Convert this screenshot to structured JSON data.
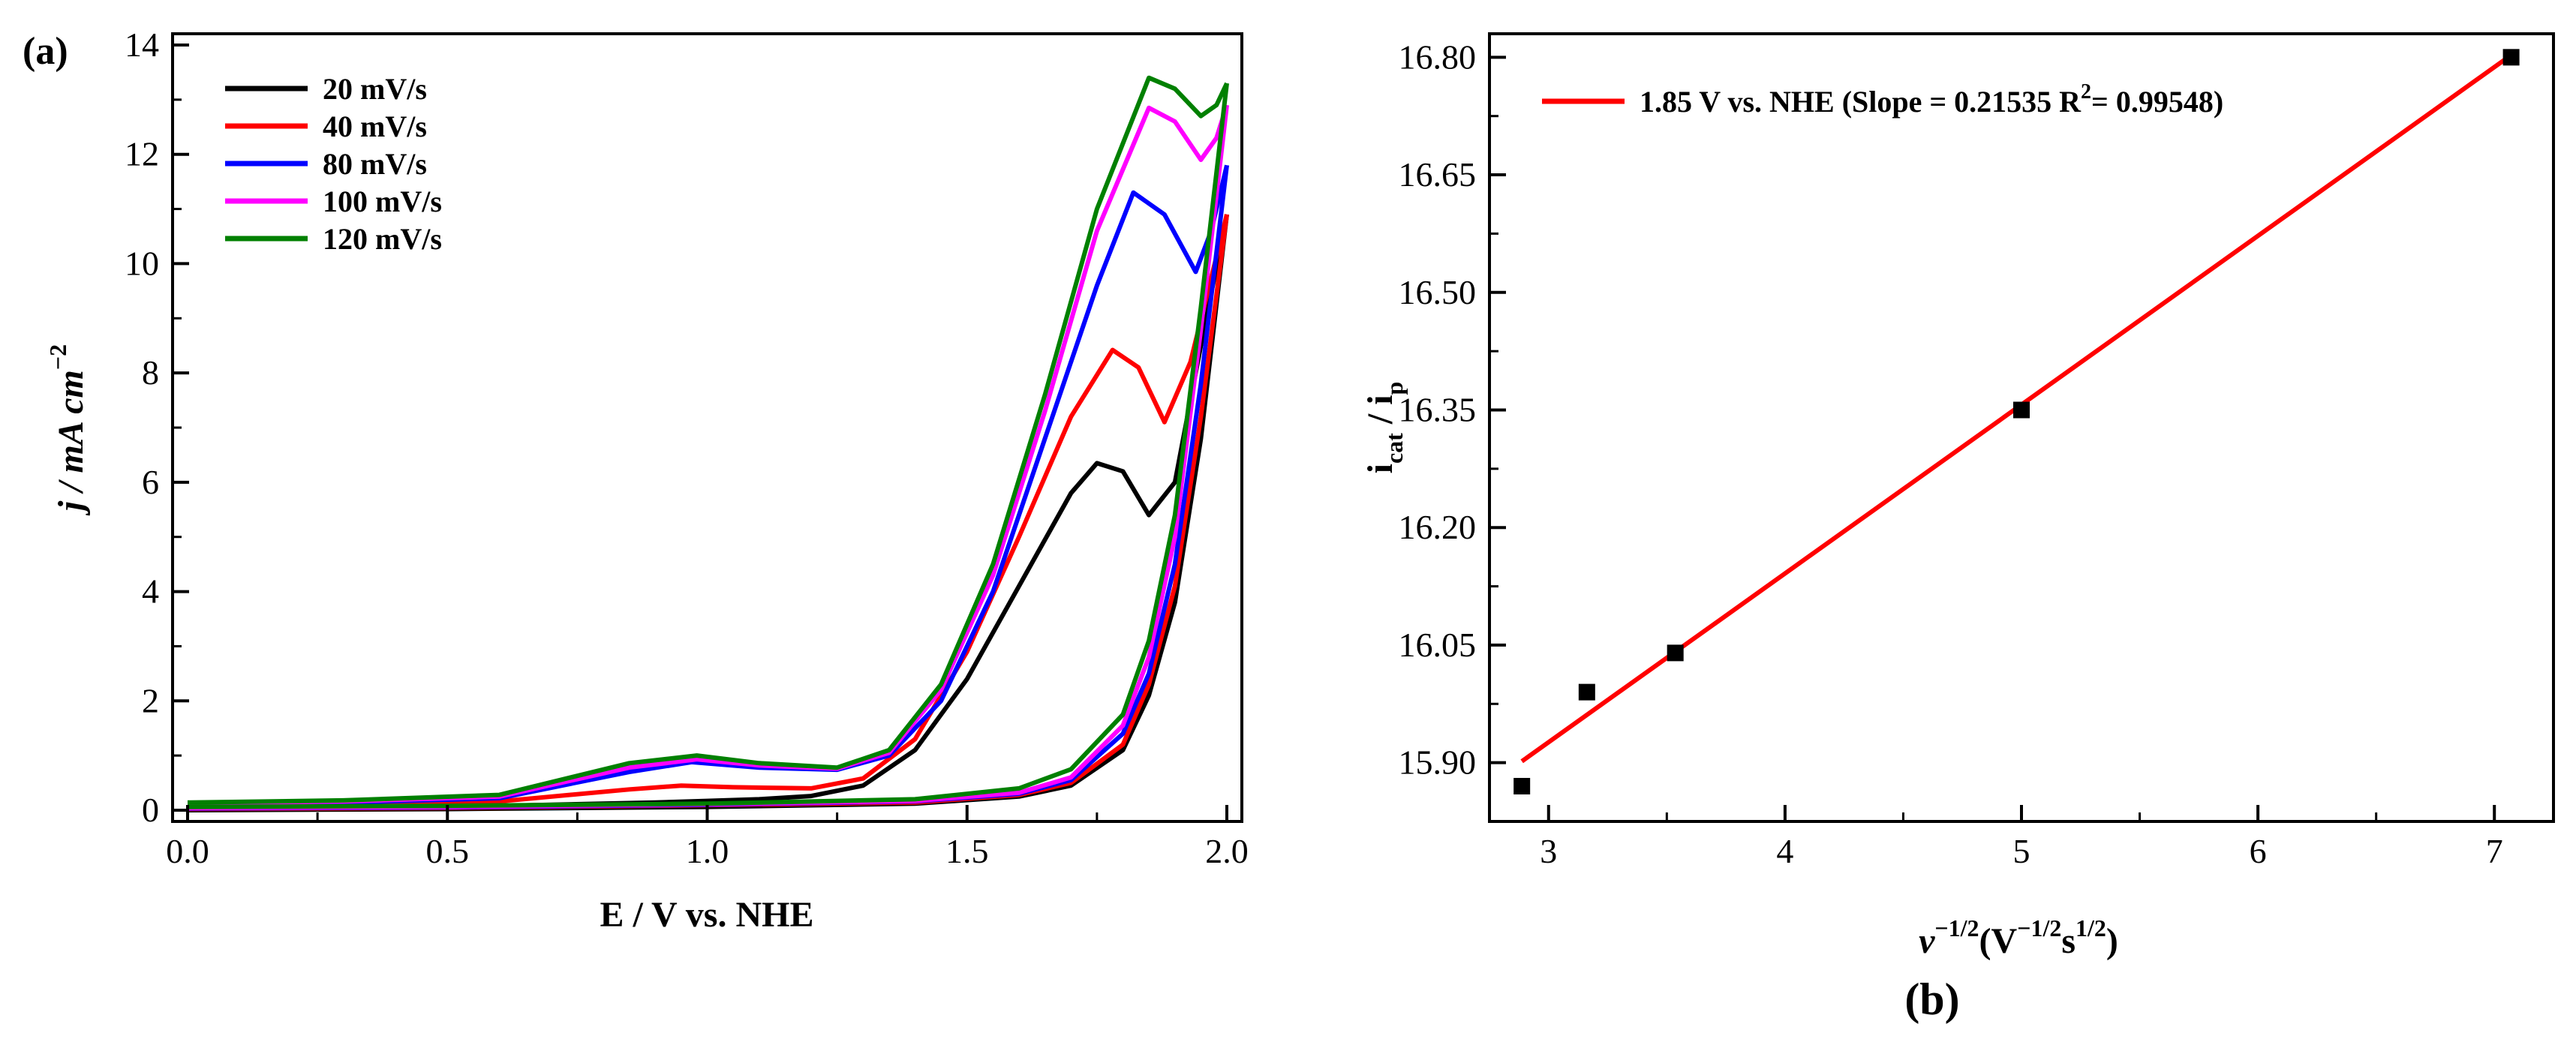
{
  "chart_data": [
    {
      "type": "line",
      "panel_label": "(a)",
      "xlabel": "E / V vs. NHE",
      "ylabel": "j / mA cm",
      "ylabel_sup": "−2",
      "xlim": [
        0.0,
        2.0
      ],
      "ylim": [
        0,
        14
      ],
      "xticks": [
        "0.0",
        "0.5",
        "1.0",
        "1.5",
        "2.0"
      ],
      "yticks": [
        "0",
        "2",
        "4",
        "6",
        "8",
        "10",
        "12",
        "14"
      ],
      "legend_position": "top-left",
      "series": [
        {
          "name": "20 mV/s",
          "color": "#000000",
          "forward": [
            [
              0.0,
              0.03
            ],
            [
              0.3,
              0.05
            ],
            [
              0.6,
              0.08
            ],
            [
              0.9,
              0.14
            ],
            [
              1.0,
              0.17
            ],
            [
              1.1,
              0.2
            ],
            [
              1.2,
              0.26
            ],
            [
              1.3,
              0.45
            ],
            [
              1.4,
              1.1
            ],
            [
              1.5,
              2.4
            ],
            [
              1.6,
              4.1
            ],
            [
              1.7,
              5.8
            ],
            [
              1.75,
              6.35
            ],
            [
              1.8,
              6.2
            ],
            [
              1.85,
              5.4
            ],
            [
              1.9,
              6.0
            ],
            [
              1.95,
              8.5
            ],
            [
              2.0,
              10.9
            ]
          ],
          "reverse": [
            [
              2.0,
              10.9
            ],
            [
              1.95,
              6.8
            ],
            [
              1.9,
              3.8
            ],
            [
              1.85,
              2.1
            ],
            [
              1.8,
              1.1
            ],
            [
              1.7,
              0.45
            ],
            [
              1.6,
              0.25
            ],
            [
              1.4,
              0.12
            ],
            [
              1.0,
              0.06
            ],
            [
              0.5,
              0.02
            ],
            [
              0.0,
              0.0
            ]
          ]
        },
        {
          "name": "40 mV/s",
          "color": "#ff0000",
          "forward": [
            [
              0.0,
              0.06
            ],
            [
              0.3,
              0.1
            ],
            [
              0.6,
              0.16
            ],
            [
              0.85,
              0.38
            ],
            [
              0.95,
              0.45
            ],
            [
              1.05,
              0.42
            ],
            [
              1.2,
              0.4
            ],
            [
              1.3,
              0.58
            ],
            [
              1.4,
              1.3
            ],
            [
              1.5,
              2.9
            ],
            [
              1.6,
              5.0
            ],
            [
              1.7,
              7.2
            ],
            [
              1.78,
              8.42
            ],
            [
              1.83,
              8.1
            ],
            [
              1.88,
              7.1
            ],
            [
              1.93,
              8.2
            ],
            [
              2.0,
              10.9
            ]
          ],
          "reverse": [
            [
              2.0,
              10.9
            ],
            [
              1.95,
              7.2
            ],
            [
              1.9,
              4.1
            ],
            [
              1.85,
              2.3
            ],
            [
              1.8,
              1.2
            ],
            [
              1.7,
              0.5
            ],
            [
              1.6,
              0.28
            ],
            [
              1.4,
              0.14
            ],
            [
              1.0,
              0.09
            ],
            [
              0.5,
              0.04
            ],
            [
              0.0,
              0.02
            ]
          ]
        },
        {
          "name": "80 mV/s",
          "color": "#0000ff",
          "forward": [
            [
              0.0,
              0.1
            ],
            [
              0.3,
              0.14
            ],
            [
              0.6,
              0.22
            ],
            [
              0.85,
              0.7
            ],
            [
              0.97,
              0.88
            ],
            [
              1.1,
              0.78
            ],
            [
              1.25,
              0.74
            ],
            [
              1.35,
              1.0
            ],
            [
              1.45,
              2.0
            ],
            [
              1.55,
              4.0
            ],
            [
              1.65,
              6.8
            ],
            [
              1.75,
              9.6
            ],
            [
              1.82,
              11.3
            ],
            [
              1.88,
              10.9
            ],
            [
              1.94,
              9.85
            ],
            [
              1.97,
              10.6
            ],
            [
              2.0,
              11.8
            ]
          ],
          "reverse": [
            [
              2.0,
              11.8
            ],
            [
              1.95,
              7.8
            ],
            [
              1.9,
              4.5
            ],
            [
              1.85,
              2.5
            ],
            [
              1.8,
              1.4
            ],
            [
              1.7,
              0.55
            ],
            [
              1.6,
              0.3
            ],
            [
              1.4,
              0.16
            ],
            [
              1.0,
              0.1
            ],
            [
              0.5,
              0.05
            ],
            [
              0.0,
              0.03
            ]
          ]
        },
        {
          "name": "100 mV/s",
          "color": "#ff00ff",
          "forward": [
            [
              0.0,
              0.12
            ],
            [
              0.3,
              0.16
            ],
            [
              0.6,
              0.25
            ],
            [
              0.85,
              0.78
            ],
            [
              0.98,
              0.93
            ],
            [
              1.1,
              0.82
            ],
            [
              1.25,
              0.76
            ],
            [
              1.35,
              1.05
            ],
            [
              1.45,
              2.2
            ],
            [
              1.55,
              4.3
            ],
            [
              1.65,
              7.3
            ],
            [
              1.75,
              10.6
            ],
            [
              1.85,
              12.85
            ],
            [
              1.9,
              12.6
            ],
            [
              1.95,
              11.9
            ],
            [
              1.98,
              12.3
            ],
            [
              2.0,
              12.9
            ]
          ],
          "reverse": [
            [
              2.0,
              12.9
            ],
            [
              1.95,
              8.8
            ],
            [
              1.9,
              5.0
            ],
            [
              1.85,
              2.8
            ],
            [
              1.8,
              1.55
            ],
            [
              1.7,
              0.6
            ],
            [
              1.6,
              0.32
            ],
            [
              1.4,
              0.17
            ],
            [
              1.0,
              0.11
            ],
            [
              0.5,
              0.06
            ],
            [
              0.0,
              0.04
            ]
          ]
        },
        {
          "name": "120 mV/s",
          "color": "#008000",
          "forward": [
            [
              0.0,
              0.14
            ],
            [
              0.3,
              0.18
            ],
            [
              0.6,
              0.28
            ],
            [
              0.85,
              0.86
            ],
            [
              0.98,
              1.0
            ],
            [
              1.1,
              0.86
            ],
            [
              1.25,
              0.78
            ],
            [
              1.35,
              1.1
            ],
            [
              1.45,
              2.3
            ],
            [
              1.55,
              4.5
            ],
            [
              1.65,
              7.6
            ],
            [
              1.75,
              11.0
            ],
            [
              1.85,
              13.4
            ],
            [
              1.9,
              13.2
            ],
            [
              1.95,
              12.7
            ],
            [
              1.98,
              12.9
            ],
            [
              2.0,
              13.3
            ]
          ],
          "reverse": [
            [
              2.0,
              13.3
            ],
            [
              1.95,
              9.2
            ],
            [
              1.9,
              5.4
            ],
            [
              1.85,
              3.1
            ],
            [
              1.8,
              1.75
            ],
            [
              1.7,
              0.75
            ],
            [
              1.6,
              0.4
            ],
            [
              1.4,
              0.2
            ],
            [
              1.0,
              0.12
            ],
            [
              0.5,
              0.08
            ],
            [
              0.0,
              0.06
            ]
          ]
        }
      ]
    },
    {
      "type": "scatter",
      "panel_label": "(b)",
      "xlabel_main": "v",
      "xlabel_sup1": "−1/2",
      "xlabel_open": "(V",
      "xlabel_sup2": "−1/2",
      "xlabel_s": "s",
      "xlabel_sup3": "1/2",
      "xlabel_close": ")",
      "ylabel_i1": "i",
      "ylabel_sub1": "cat",
      "ylabel_mid": " / i",
      "ylabel_sub2": "p",
      "xlim": [
        2.75,
        7.25
      ],
      "ylim": [
        15.825,
        16.83
      ],
      "xticks": [
        "3",
        "4",
        "5",
        "6",
        "7"
      ],
      "yticks": [
        "15.90",
        "16.05",
        "16.20",
        "16.35",
        "16.50",
        "16.65",
        "16.80"
      ],
      "points": [
        [
          2.887,
          15.87
        ],
        [
          3.162,
          15.99
        ],
        [
          3.536,
          16.04
        ],
        [
          5.0,
          16.35
        ],
        [
          7.071,
          16.8
        ]
      ],
      "fit": {
        "slope": 0.21535,
        "intercept": 15.28,
        "x_range": [
          2.887,
          7.071
        ],
        "color": "#ff0000"
      },
      "legend_text": "1.85 V vs. NHE (Slope = 0.21535 R",
      "legend_sup": "2",
      "legend_end": "= 0.99548)",
      "legend_position": "top-left"
    }
  ]
}
